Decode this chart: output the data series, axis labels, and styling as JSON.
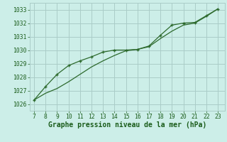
{
  "x": [
    7,
    8,
    9,
    10,
    11,
    12,
    13,
    14,
    15,
    16,
    17,
    18,
    19,
    20,
    21,
    22,
    23
  ],
  "line1": [
    1026.3,
    1027.3,
    1028.2,
    1028.85,
    1029.2,
    1029.5,
    1029.85,
    1030.0,
    1030.0,
    1030.05,
    1030.3,
    1031.1,
    1031.85,
    1032.0,
    1032.05,
    1032.55,
    1033.05
  ],
  "line2": [
    1026.3,
    1026.8,
    1027.15,
    1027.65,
    1028.2,
    1028.75,
    1029.2,
    1029.6,
    1029.95,
    1030.05,
    1030.25,
    1030.85,
    1031.4,
    1031.85,
    1032.0,
    1032.5,
    1033.05
  ],
  "line_color": "#2d6a2d",
  "bg_color": "#cceee8",
  "grid_color": "#aaccc8",
  "xlabel": "Graphe pression niveau de la mer (hPa)",
  "xlabel_color": "#1a5c1a",
  "ylabel_ticks": [
    1026,
    1027,
    1028,
    1029,
    1030,
    1031,
    1032,
    1033
  ],
  "ylim": [
    1025.5,
    1033.5
  ],
  "xlim": [
    6.6,
    23.6
  ],
  "xticks": [
    7,
    8,
    9,
    10,
    11,
    12,
    13,
    14,
    15,
    16,
    17,
    18,
    19,
    20,
    21,
    22,
    23
  ],
  "tick_color": "#1a5c1a",
  "tick_fontsize": 5.8,
  "xlabel_fontsize": 7.0
}
